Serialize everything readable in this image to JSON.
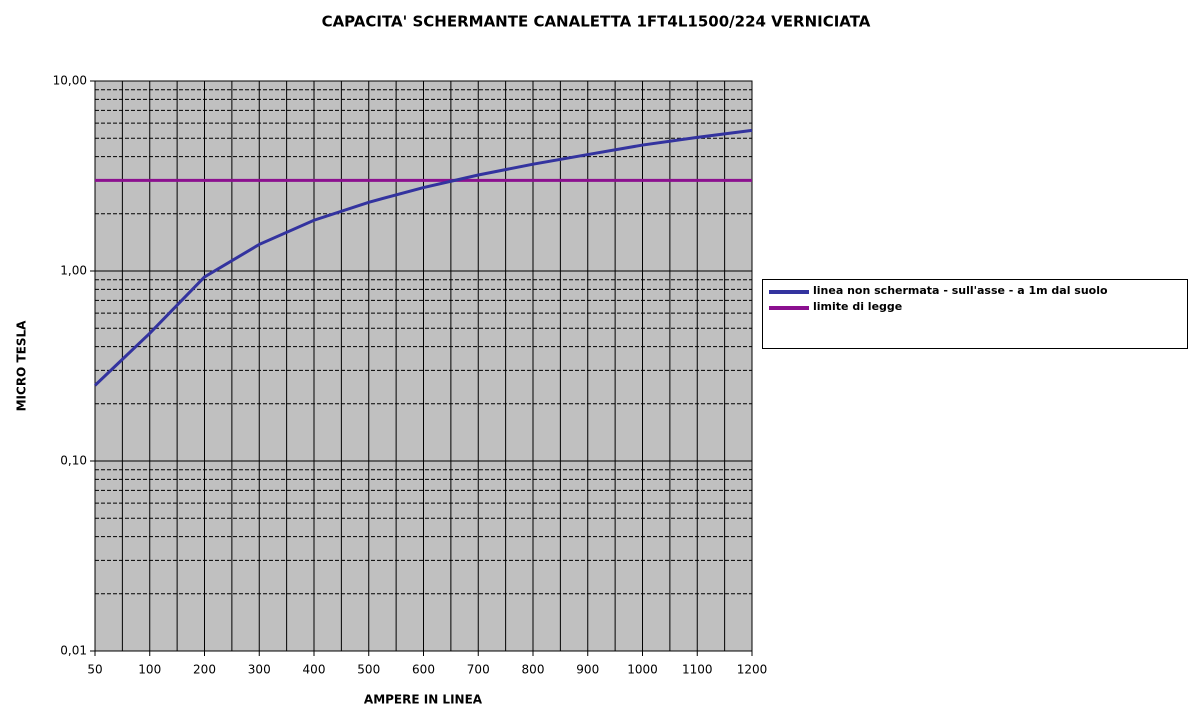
{
  "chart_data": {
    "type": "line",
    "title": "CAPACITA' SCHERMANTE CANALETTA 1FT4L1500/224 VERNICIATA",
    "x_label": "AMPERE IN LINEA",
    "y_label": "MICRO TESLA",
    "categories": [
      50,
      100,
      200,
      300,
      400,
      500,
      600,
      700,
      800,
      900,
      1000,
      1100,
      1200
    ],
    "series": [
      {
        "name": "linea non schermata - sull'asse - a 1m dal suolo",
        "color": "#33339f",
        "values": [
          0.25,
          0.47,
          0.93,
          1.38,
          1.85,
          2.3,
          2.75,
          3.2,
          3.65,
          4.1,
          4.6,
          5.05,
          5.5
        ]
      },
      {
        "name": "limite di legge",
        "color": "#8b108f",
        "values": [
          3,
          3,
          3,
          3,
          3,
          3,
          3,
          3,
          3,
          3,
          3,
          3,
          3
        ]
      }
    ],
    "ylim": [
      0.01,
      10
    ],
    "log_y": true,
    "yticks": [
      {
        "value": 0.01,
        "label": "0,01"
      },
      {
        "value": 0.1,
        "label": "0,10"
      },
      {
        "value": 1,
        "label": "1,00"
      },
      {
        "value": 10,
        "label": "10,00"
      }
    ],
    "grid": true,
    "minor_grid": true,
    "plot_background": "#c0c0c0",
    "legend": "right"
  }
}
